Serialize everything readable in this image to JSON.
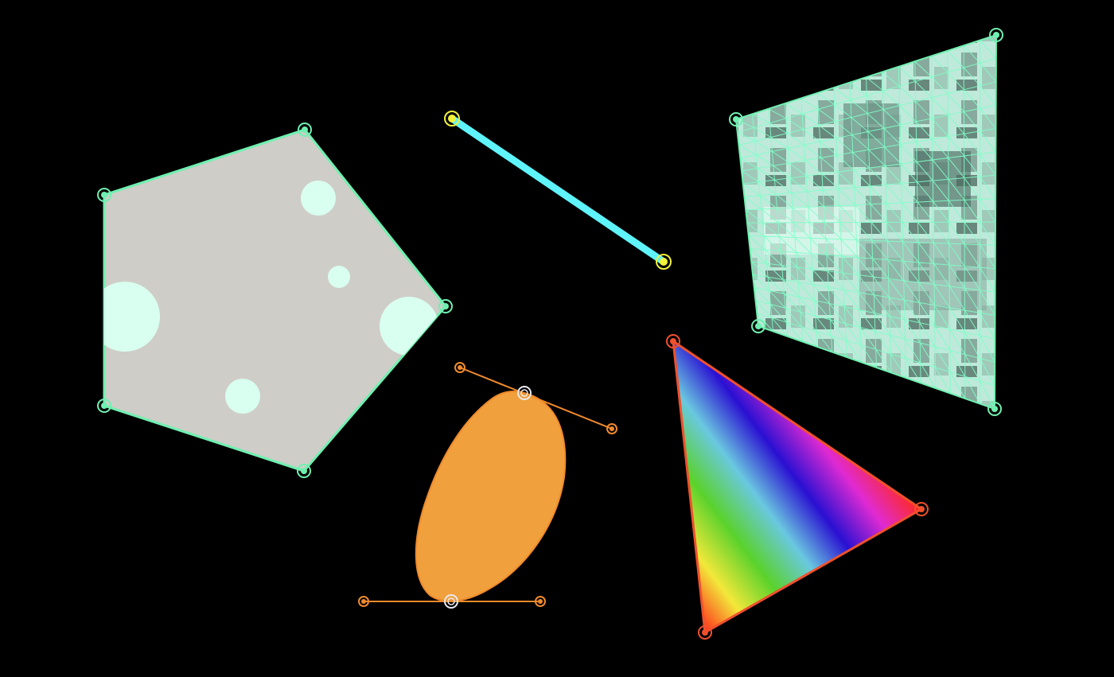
{
  "colors": {
    "background": "#000000",
    "green_accent": "#6ff0b0",
    "pentagon_fill": "#cfcdc8",
    "pentagon_spot": "#d9fff0",
    "line_stroke": "#5ef4fa",
    "line_handle": "#f2f23a",
    "ellipse_fill": "#f0a03c",
    "ellipse_accent": "#f08a2c",
    "bezier_anchor": "#e9e9f0",
    "triangle_accent": "#f0502c",
    "mesh_stroke": "#7fffc8",
    "mesh_fill": "#b8ffe4"
  },
  "gradient_stops": [
    "#ff2a1a",
    "#f2e83a",
    "#5ad22c",
    "#6ac8e0",
    "#2a10d2",
    "#e02ad2",
    "#ff2a1a"
  ],
  "icons": {
    "vertex": "circle-handle-icon",
    "endpoint": "circle-handle-icon"
  }
}
